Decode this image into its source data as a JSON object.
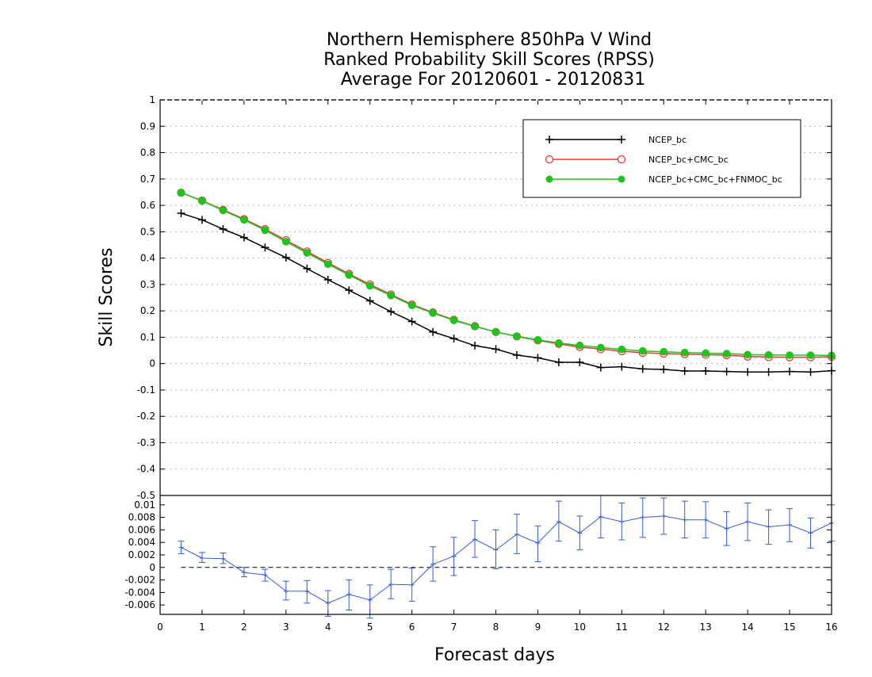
{
  "chart_data": [
    {
      "type": "line",
      "title": "Northern Hemisphere 850hPa V Wind",
      "subtitle": "Ranked Probability Skill Scores (RPSS)",
      "subtitle2": "Average For 20120601 - 20120831",
      "xlabel": "",
      "ylabel": "Skill Scores",
      "xlim": [
        0,
        16
      ],
      "ylim": [
        -0.5,
        1
      ],
      "yticks": [
        "-0.5",
        "-0.4",
        "-0.3",
        "-0.2",
        "-0.1",
        "0",
        "0.1",
        "0.2",
        "0.3",
        "0.4",
        "0.5",
        "0.6",
        "0.7",
        "0.8",
        "0.9",
        "1"
      ],
      "grid": true,
      "legend_position": "top-right",
      "x": [
        0.5,
        1.0,
        1.5,
        2.0,
        2.5,
        3.0,
        3.5,
        4.0,
        4.5,
        5.0,
        5.5,
        6.0,
        6.5,
        7.0,
        7.5,
        8.0,
        8.5,
        9.0,
        9.5,
        10.0,
        10.5,
        11.0,
        11.5,
        12.0,
        12.5,
        13.0,
        13.5,
        14.0,
        14.5,
        15.0,
        15.5,
        16.0
      ],
      "series": [
        {
          "name": "NCEP_bc",
          "color": "#000000",
          "marker": "plus",
          "values": [
            0.57,
            0.545,
            0.51,
            0.478,
            0.44,
            0.402,
            0.36,
            0.318,
            0.278,
            0.238,
            0.197,
            0.16,
            0.12,
            0.095,
            0.068,
            0.055,
            0.032,
            0.022,
            0.005,
            0.005,
            -0.015,
            -0.012,
            -0.02,
            -0.022,
            -0.028,
            -0.028,
            -0.03,
            -0.032,
            -0.032,
            -0.03,
            -0.032,
            -0.027
          ]
        },
        {
          "name": "NCEP_bc+CMC_bc",
          "color": "#e53935",
          "marker": "open-circle",
          "values": [
            0.648,
            0.618,
            0.583,
            0.548,
            0.51,
            0.468,
            0.425,
            0.382,
            0.34,
            0.3,
            0.262,
            0.224,
            0.194,
            0.166,
            0.142,
            0.12,
            0.103,
            0.088,
            0.075,
            0.063,
            0.055,
            0.047,
            0.041,
            0.038,
            0.036,
            0.034,
            0.032,
            0.027,
            0.025,
            0.024,
            0.024,
            0.026
          ]
        },
        {
          "name": "NCEP_bc+CMC_bc+FNMOC_bc",
          "color": "#1ec31e",
          "marker": "filled-circle",
          "values": [
            0.648,
            0.617,
            0.581,
            0.545,
            0.506,
            0.462,
            0.42,
            0.377,
            0.336,
            0.295,
            0.258,
            0.221,
            0.192,
            0.164,
            0.141,
            0.12,
            0.104,
            0.09,
            0.078,
            0.069,
            0.061,
            0.054,
            0.048,
            0.045,
            0.042,
            0.04,
            0.038,
            0.034,
            0.033,
            0.032,
            0.032,
            0.031
          ]
        }
      ]
    },
    {
      "type": "line",
      "title": "",
      "xlabel": "Forecast days",
      "ylabel": "",
      "xlim": [
        0,
        16
      ],
      "ylim": [
        -0.0075,
        0.0115
      ],
      "xticks": [
        "0",
        "1",
        "2",
        "3",
        "4",
        "5",
        "6",
        "7",
        "8",
        "9",
        "10",
        "11",
        "12",
        "13",
        "14",
        "15",
        "16"
      ],
      "yticks": [
        "-0.006",
        "-0.004",
        "-0.002",
        "0",
        "0.002",
        "0.004",
        "0.006",
        "0.008",
        "0.01"
      ],
      "zero_line": true,
      "x": [
        0.5,
        1.0,
        1.5,
        2.0,
        2.5,
        3.0,
        3.5,
        4.0,
        4.5,
        5.0,
        5.5,
        6.0,
        6.5,
        7.0,
        7.5,
        8.0,
        8.5,
        9.0,
        9.5,
        10.0,
        10.5,
        11.0,
        11.5,
        12.0,
        12.5,
        13.0,
        13.5,
        14.0,
        14.5,
        15.0,
        15.5,
        16.0
      ],
      "series": [
        {
          "color": "#3a5bd9",
          "marker": "plus",
          "error_bars": true,
          "values": [
            0.0032,
            0.0015,
            0.0014,
            -0.0008,
            -0.0012,
            -0.0038,
            -0.0038,
            -0.0057,
            -0.0043,
            -0.0052,
            -0.0027,
            -0.0028,
            0.0005,
            0.0018,
            0.0045,
            0.0028,
            0.0053,
            0.0039,
            0.0073,
            0.0055,
            0.0081,
            0.0073,
            0.008,
            0.0082,
            0.0076,
            0.0076,
            0.0062,
            0.0073,
            0.0065,
            0.0068,
            0.0055,
            0.0071
          ],
          "lower": [
            0.0022,
            0.0008,
            0.0006,
            -0.0015,
            -0.0022,
            -0.0052,
            -0.0057,
            -0.0078,
            -0.0068,
            -0.0081,
            -0.005,
            -0.0054,
            -0.0022,
            -0.0013,
            0.0016,
            -0.0002,
            0.0022,
            0.0009,
            0.0042,
            0.0028,
            0.0047,
            0.0044,
            0.0048,
            0.0053,
            0.0047,
            0.0047,
            0.0035,
            0.0043,
            0.0037,
            0.0041,
            0.0031,
            0.0042
          ],
          "upper": [
            0.0042,
            0.0024,
            0.0023,
            0.0,
            -0.0003,
            -0.0022,
            -0.0021,
            -0.0037,
            -0.002,
            -0.0028,
            -0.0003,
            -0.0001,
            0.0033,
            0.0048,
            0.0075,
            0.006,
            0.0085,
            0.0066,
            0.0106,
            0.0082,
            0.0115,
            0.0103,
            0.0111,
            0.0111,
            0.0106,
            0.0105,
            0.0089,
            0.0103,
            0.0092,
            0.0094,
            0.0079,
            0.01
          ]
        }
      ]
    }
  ]
}
